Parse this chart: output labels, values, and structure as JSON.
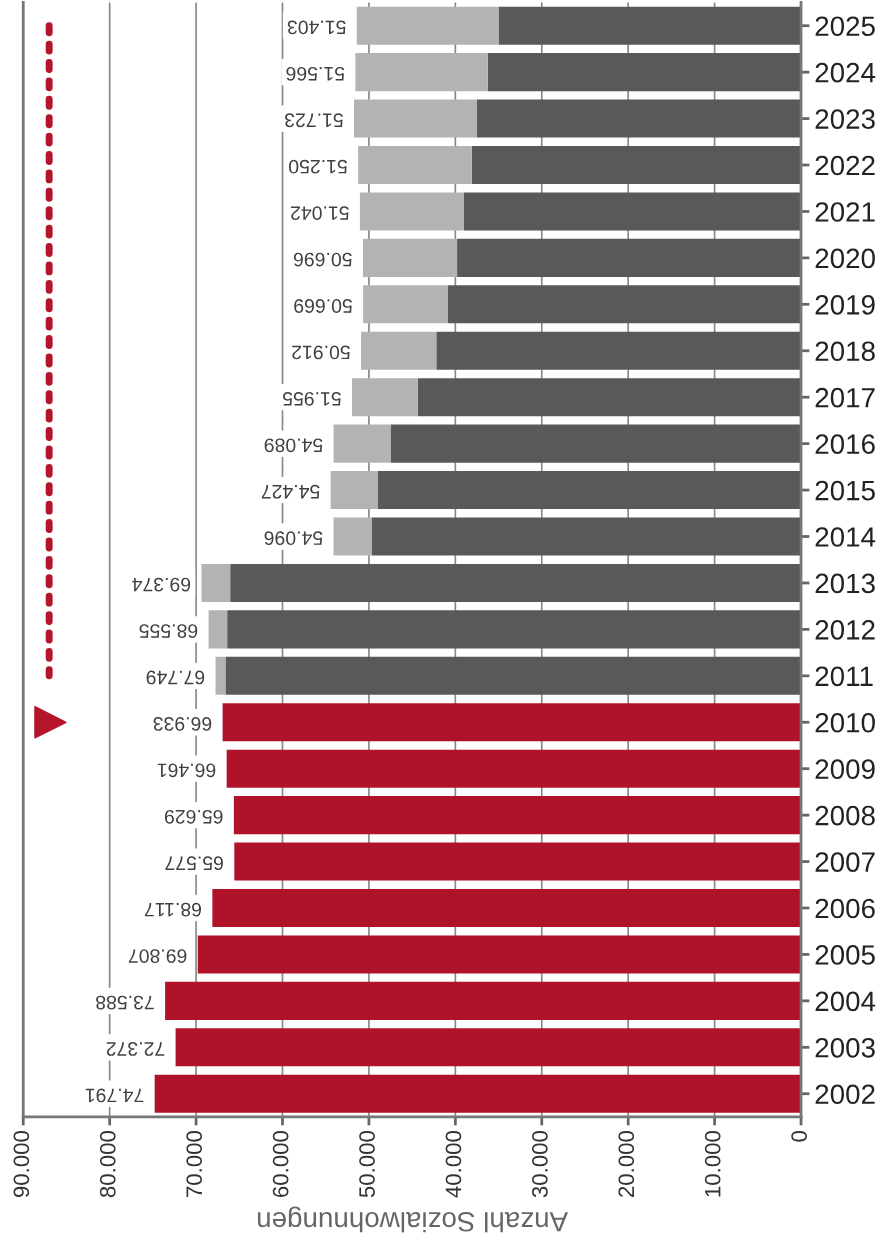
{
  "chart_data": {
    "type": "bar",
    "orientation": "horizontal",
    "stacked": true,
    "xlabel": "Anzahl Sozialwohnungen",
    "categories": [
      "2025",
      "2024",
      "2023",
      "2022",
      "2021",
      "2020",
      "2019",
      "2018",
      "2017",
      "2016",
      "2015",
      "2014",
      "2013",
      "2012",
      "2011",
      "2010",
      "2009",
      "2008",
      "2007",
      "2006",
      "2005",
      "2004",
      "2003",
      "2002"
    ],
    "series": [
      {
        "color": "#b01329",
        "values": [
          null,
          null,
          null,
          null,
          null,
          null,
          null,
          null,
          null,
          null,
          null,
          null,
          null,
          null,
          null,
          66933,
          66461,
          65629,
          65577,
          68117,
          69807,
          73588,
          72372,
          74791
        ]
      },
      {
        "color": "#595959",
        "values": [
          35000,
          36250,
          37500,
          38100,
          39000,
          39800,
          40850,
          42200,
          44350,
          47500,
          49000,
          49700,
          66050,
          66400,
          66600,
          null,
          null,
          null,
          null,
          null,
          null,
          null,
          null,
          null
        ]
      },
      {
        "color": "#b3b3b3",
        "values": [
          16403,
          15316,
          14223,
          13150,
          12042,
          10896,
          9819,
          8712,
          7605,
          6589,
          5427,
          4396,
          3324,
          2155,
          1149,
          null,
          null,
          null,
          null,
          null,
          null,
          null,
          null,
          null
        ]
      },
      {
        "type": "line",
        "color": "#b5152b",
        "line_style": "dotted",
        "values": [
          87000,
          87000,
          87000,
          87000,
          87000,
          87000,
          87000,
          87000,
          87000,
          87000,
          87000,
          87000,
          87000,
          87000,
          87000,
          null,
          null,
          null,
          null,
          null,
          null,
          null,
          null,
          null
        ]
      }
    ],
    "totals": [
      "51.403",
      "51.566",
      "51.723",
      "51.250",
      "51.042",
      "50.696",
      "50.669",
      "50.912",
      "51.955",
      "54.089",
      "54.427",
      "54.096",
      "69.374",
      "68.555",
      "67.749",
      "66.933",
      "66.461",
      "65.629",
      "65.577",
      "68.117",
      "69.807",
      "73.588",
      "72.372",
      "74.791"
    ],
    "xlim": [
      90000,
      0
    ],
    "xticks": [
      {
        "value": 90000,
        "label": "90.000"
      },
      {
        "value": 80000,
        "label": "80.000"
      },
      {
        "value": 70000,
        "label": "70.000"
      },
      {
        "value": 60000,
        "label": "60.000"
      },
      {
        "value": 50000,
        "label": "50.000"
      },
      {
        "value": 40000,
        "label": "40.000"
      },
      {
        "value": 30000,
        "label": "30.000"
      },
      {
        "value": 20000,
        "label": "20.000"
      },
      {
        "value": 10000,
        "label": "10.000"
      },
      0
    ],
    "grid": "x"
  }
}
